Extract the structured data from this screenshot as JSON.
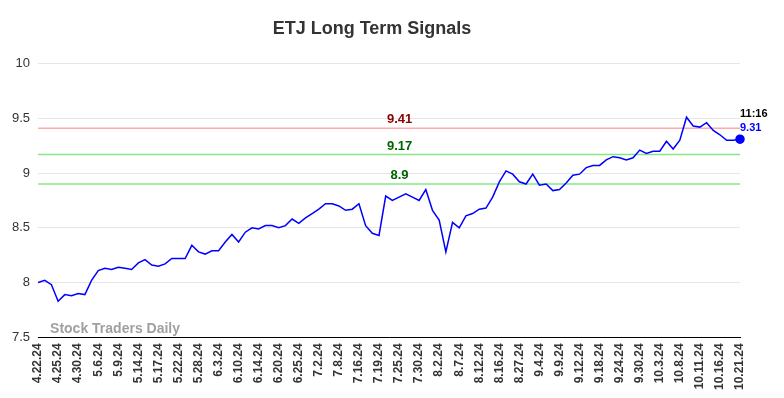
{
  "chart_data": {
    "type": "line",
    "title": "ETJ Long Term Signals",
    "color": "#0000ff",
    "grid": true,
    "ylim": [
      7.5,
      10
    ],
    "yticks": [
      7.5,
      8,
      8.5,
      9,
      9.5,
      10
    ],
    "categories": [
      "4.22.24",
      null,
      null,
      "4.25.24",
      null,
      null,
      "4.30.24",
      null,
      null,
      "5.6.24",
      null,
      null,
      "5.9.24",
      null,
      null,
      "5.14.24",
      null,
      null,
      "5.17.24",
      null,
      null,
      "5.22.24",
      null,
      null,
      "5.28.24",
      null,
      null,
      "6.3.24",
      null,
      null,
      "6.10.24",
      null,
      null,
      "6.14.24",
      null,
      null,
      "6.20.24",
      null,
      null,
      "6.25.24",
      null,
      null,
      "7.2.24",
      null,
      null,
      "7.8.24",
      null,
      null,
      "7.16.24",
      null,
      null,
      "7.19.24",
      null,
      null,
      "7.25.24",
      null,
      null,
      "7.30.24",
      null,
      null,
      "8.2.24",
      null,
      null,
      "8.7.24",
      null,
      null,
      "8.12.24",
      null,
      null,
      "8.16.24",
      null,
      null,
      "8.27.24",
      null,
      null,
      "9.4.24",
      null,
      null,
      "9.9.24",
      null,
      null,
      "9.12.24",
      null,
      null,
      "9.18.24",
      null,
      null,
      "9.24.24",
      null,
      null,
      "9.30.24",
      null,
      null,
      "10.3.24",
      null,
      null,
      "10.8.24",
      null,
      null,
      "10.11.24",
      null,
      null,
      "10.16.24",
      null,
      null,
      "10.21.24"
    ],
    "values": [
      8.0,
      8.02,
      7.98,
      7.83,
      7.89,
      7.88,
      7.9,
      7.89,
      8.02,
      8.11,
      8.13,
      8.12,
      8.14,
      8.13,
      8.12,
      8.18,
      8.21,
      8.16,
      8.15,
      8.17,
      8.22,
      8.22,
      8.22,
      8.34,
      8.28,
      8.26,
      8.29,
      8.29,
      8.37,
      8.44,
      8.37,
      8.46,
      8.5,
      8.49,
      8.52,
      8.52,
      8.5,
      8.52,
      8.58,
      8.54,
      8.59,
      8.63,
      8.67,
      8.72,
      8.72,
      8.7,
      8.66,
      8.67,
      8.72,
      8.52,
      8.45,
      8.43,
      8.79,
      8.75,
      8.78,
      8.81,
      8.78,
      8.75,
      8.85,
      8.66,
      8.57,
      8.28,
      8.55,
      8.5,
      8.61,
      8.63,
      8.67,
      8.68,
      8.78,
      8.92,
      9.02,
      8.99,
      8.92,
      8.9,
      8.99,
      8.89,
      8.9,
      8.84,
      8.85,
      8.91,
      8.98,
      8.99,
      9.05,
      9.07,
      9.07,
      9.12,
      9.15,
      9.14,
      9.12,
      9.14,
      9.21,
      9.18,
      9.2,
      9.2,
      9.29,
      9.22,
      9.3,
      9.51,
      9.43,
      9.42,
      9.46,
      9.39,
      9.35,
      9.3,
      9.3,
      9.31
    ],
    "annotations": [
      {
        "y": 9.41,
        "text": "9.41",
        "color": "#8b0000"
      },
      {
        "y": 9.17,
        "text": "9.17",
        "color": "#006400"
      },
      {
        "y": 8.9,
        "text": "8.9",
        "color": "#006400"
      }
    ],
    "time_label": "11:16",
    "watermark": "Stock Traders Daily"
  }
}
